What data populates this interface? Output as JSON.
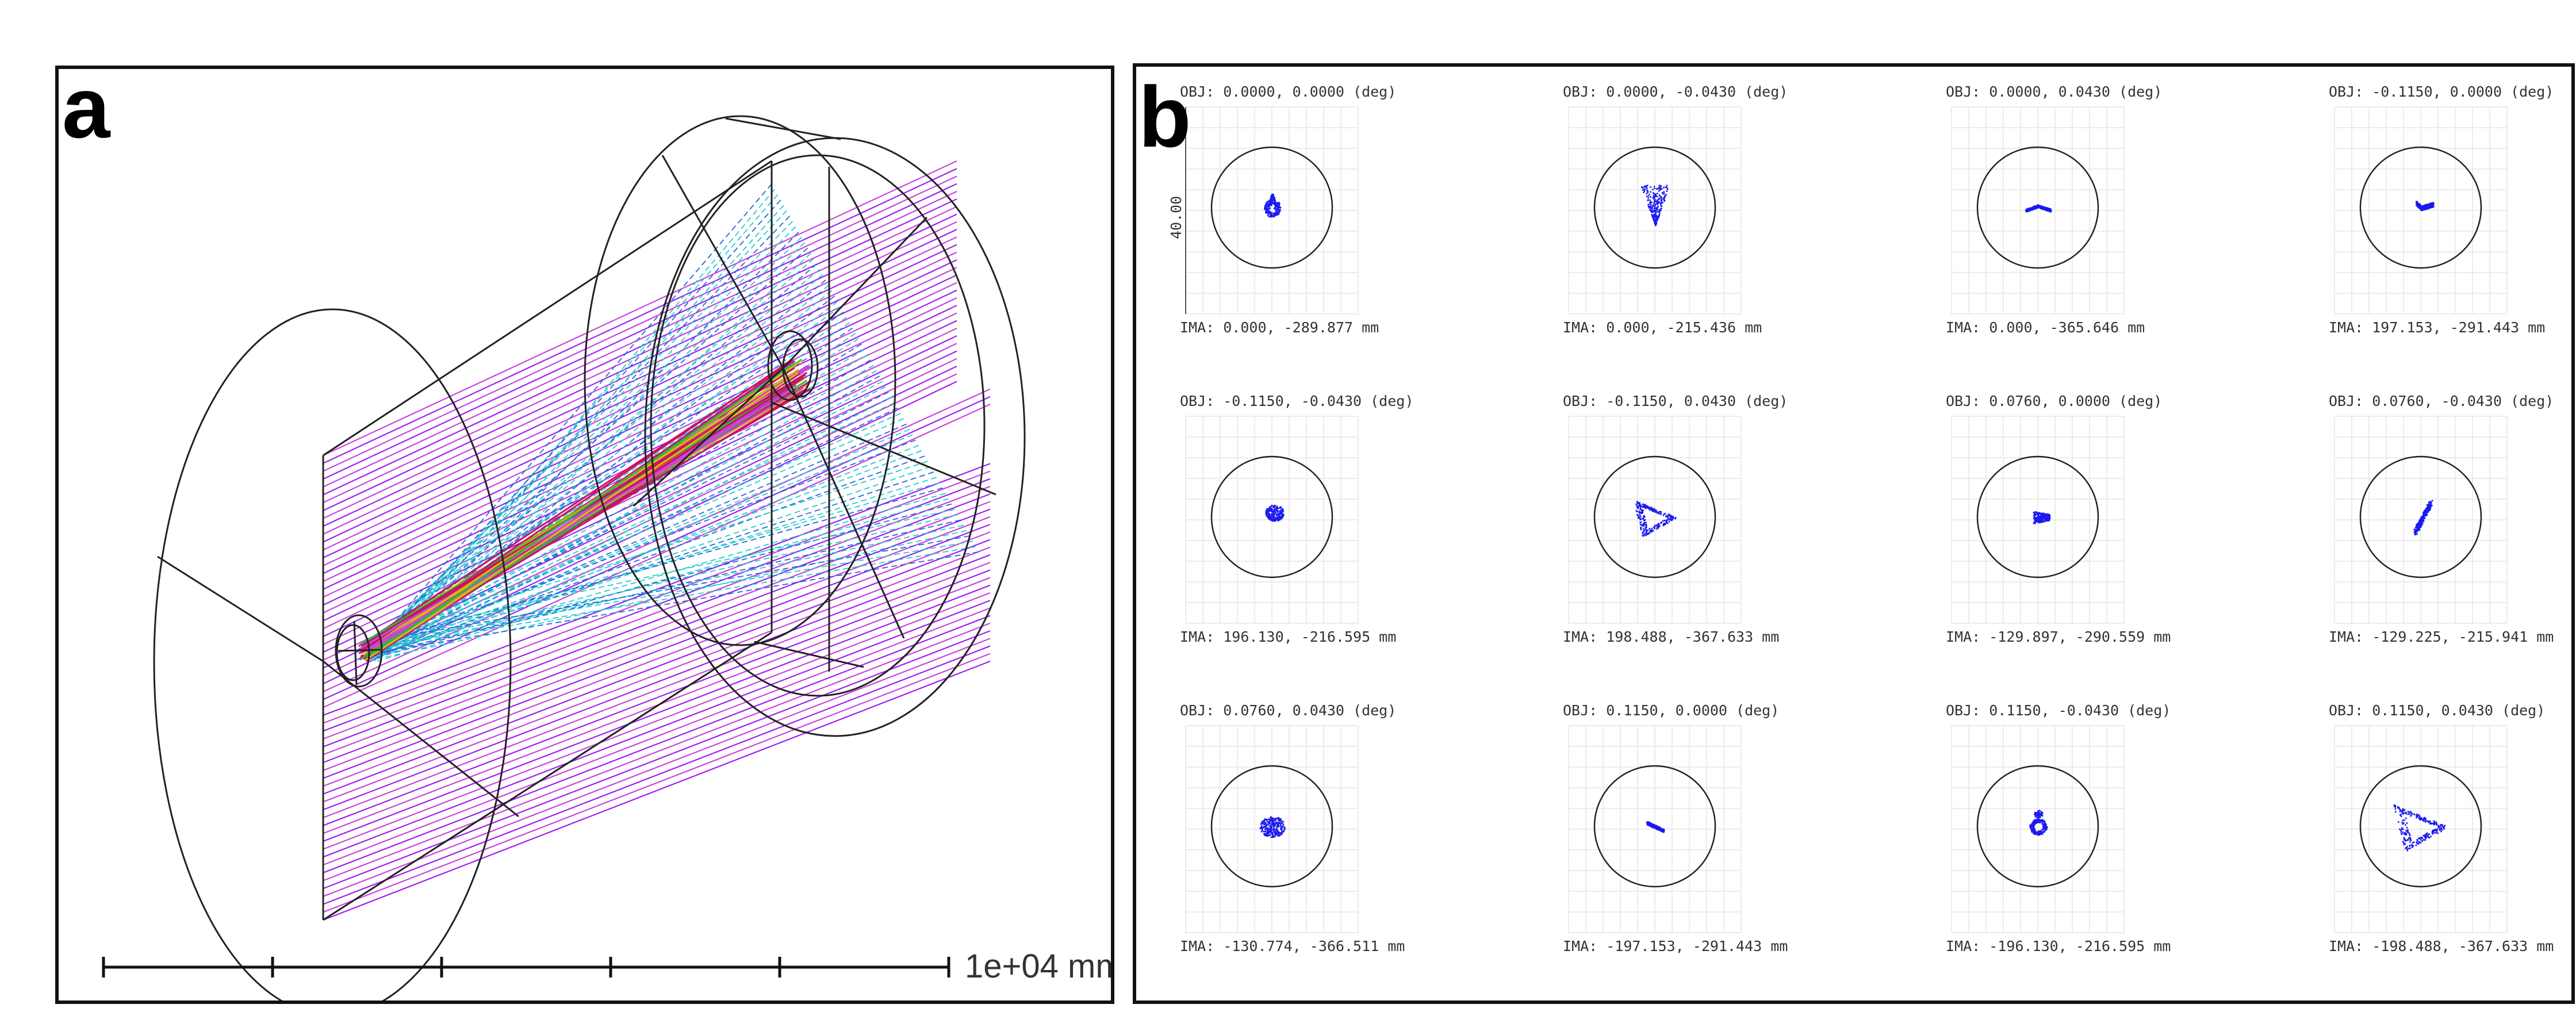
{
  "panel_a": {
    "label": "a",
    "scale_bar": {
      "label": "1e+04 mm",
      "ticks": 6
    },
    "ray_colors": [
      "#a020f0",
      "#cc44dd",
      "#22cccc",
      "#2266dd",
      "#cc1166",
      "#22bb44",
      "#ddbb00"
    ]
  },
  "panel_b": {
    "label": "b",
    "axis_label": "40.00",
    "spot_color": "#1a1aee",
    "spots": [
      {
        "obj": "OBJ: 0.0000, 0.0000 (deg)",
        "ima": "IMA: 0.000, -289.877 mm",
        "shape": "drop"
      },
      {
        "obj": "OBJ: 0.0000, -0.0430 (deg)",
        "ima": "IMA: 0.000, -215.436 mm",
        "shape": "cone"
      },
      {
        "obj": "OBJ: 0.0000, 0.0430 (deg)",
        "ima": "IMA: 0.000, -365.646 mm",
        "shape": "arc"
      },
      {
        "obj": "OBJ: -0.1150, 0.0000 (deg)",
        "ima": "IMA: 197.153, -291.443 mm",
        "shape": "flag"
      },
      {
        "obj": "OBJ: -0.1150, -0.0430 (deg)",
        "ima": "IMA: 196.130, -216.595 mm",
        "shape": "blob-tilt"
      },
      {
        "obj": "OBJ: -0.1150, 0.0430 (deg)",
        "ima": "IMA: 198.488, -367.633 mm",
        "shape": "triangle-ring"
      },
      {
        "obj": "OBJ: 0.0760, 0.0000 (deg)",
        "ima": "IMA: -129.897, -290.559 mm",
        "shape": "wedge"
      },
      {
        "obj": "OBJ: 0.0760, -0.0430 (deg)",
        "ima": "IMA: -129.225, -215.941 mm",
        "shape": "streak"
      },
      {
        "obj": "OBJ: 0.0760, 0.0430 (deg)",
        "ima": "IMA: -130.774, -366.511 mm",
        "shape": "blob-round"
      },
      {
        "obj": "OBJ: 0.1150, 0.0000 (deg)",
        "ima": "IMA: -197.153, -291.443 mm",
        "shape": "flag-small"
      },
      {
        "obj": "OBJ: 0.1150, -0.0430 (deg)",
        "ima": "IMA: -196.130, -216.595 mm",
        "shape": "blob-up"
      },
      {
        "obj": "OBJ: 0.1150, 0.0430 (deg)",
        "ima": "IMA: -198.488, -367.633 mm",
        "shape": "triangle-ring-large"
      }
    ]
  }
}
